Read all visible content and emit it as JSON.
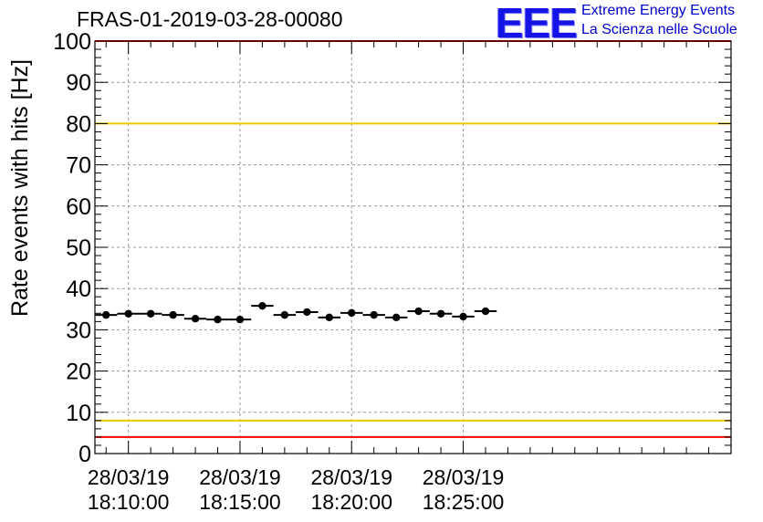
{
  "header": {
    "title": "FRAS-01-2019-03-28-00080",
    "logo_mark": "EEE",
    "logo_line1": "Extreme Energy Events",
    "logo_line2": "La Scienza nelle Scuole"
  },
  "chart_data": {
    "type": "scatter",
    "title": "FRAS-01-2019-03-28-00080",
    "xlabel": "",
    "ylabel": "Rate events with hits [Hz]",
    "ylim": [
      0,
      100
    ],
    "xlim_minutes": [
      -1.5,
      27.0
    ],
    "y_ticks": [
      0,
      10,
      20,
      30,
      40,
      50,
      60,
      70,
      80,
      90,
      100
    ],
    "x_ticks": [
      {
        "minutes": 0,
        "date": "28/03/19",
        "time": "18:10:00"
      },
      {
        "minutes": 5,
        "date": "28/03/19",
        "time": "18:15:00"
      },
      {
        "minutes": 10,
        "date": "28/03/19",
        "time": "18:20:00"
      },
      {
        "minutes": 15,
        "date": "28/03/19",
        "time": "18:25:00"
      }
    ],
    "grid": true,
    "bin_width_minutes": 1.0,
    "series": [
      {
        "name": "rate",
        "x_minutes": [
          -1.0,
          0.0,
          1.0,
          2.0,
          3.0,
          4.0,
          5.0,
          6.0,
          7.0,
          8.0,
          9.0,
          10.0,
          11.0,
          12.0,
          13.0,
          14.0,
          15.0,
          16.0
        ],
        "values": [
          33.6,
          33.9,
          33.9,
          33.6,
          32.7,
          32.5,
          32.5,
          35.8,
          33.6,
          34.3,
          33.0,
          34.1,
          33.6,
          33.0,
          34.5,
          33.9,
          33.2,
          34.5
        ]
      }
    ],
    "reference_lines": [
      {
        "y": 100,
        "color": "#ff0000"
      },
      {
        "y": 80,
        "color": "#f0c800"
      },
      {
        "y": 8,
        "color": "#f0c800"
      },
      {
        "y": 4,
        "color": "#ff0000"
      }
    ]
  }
}
